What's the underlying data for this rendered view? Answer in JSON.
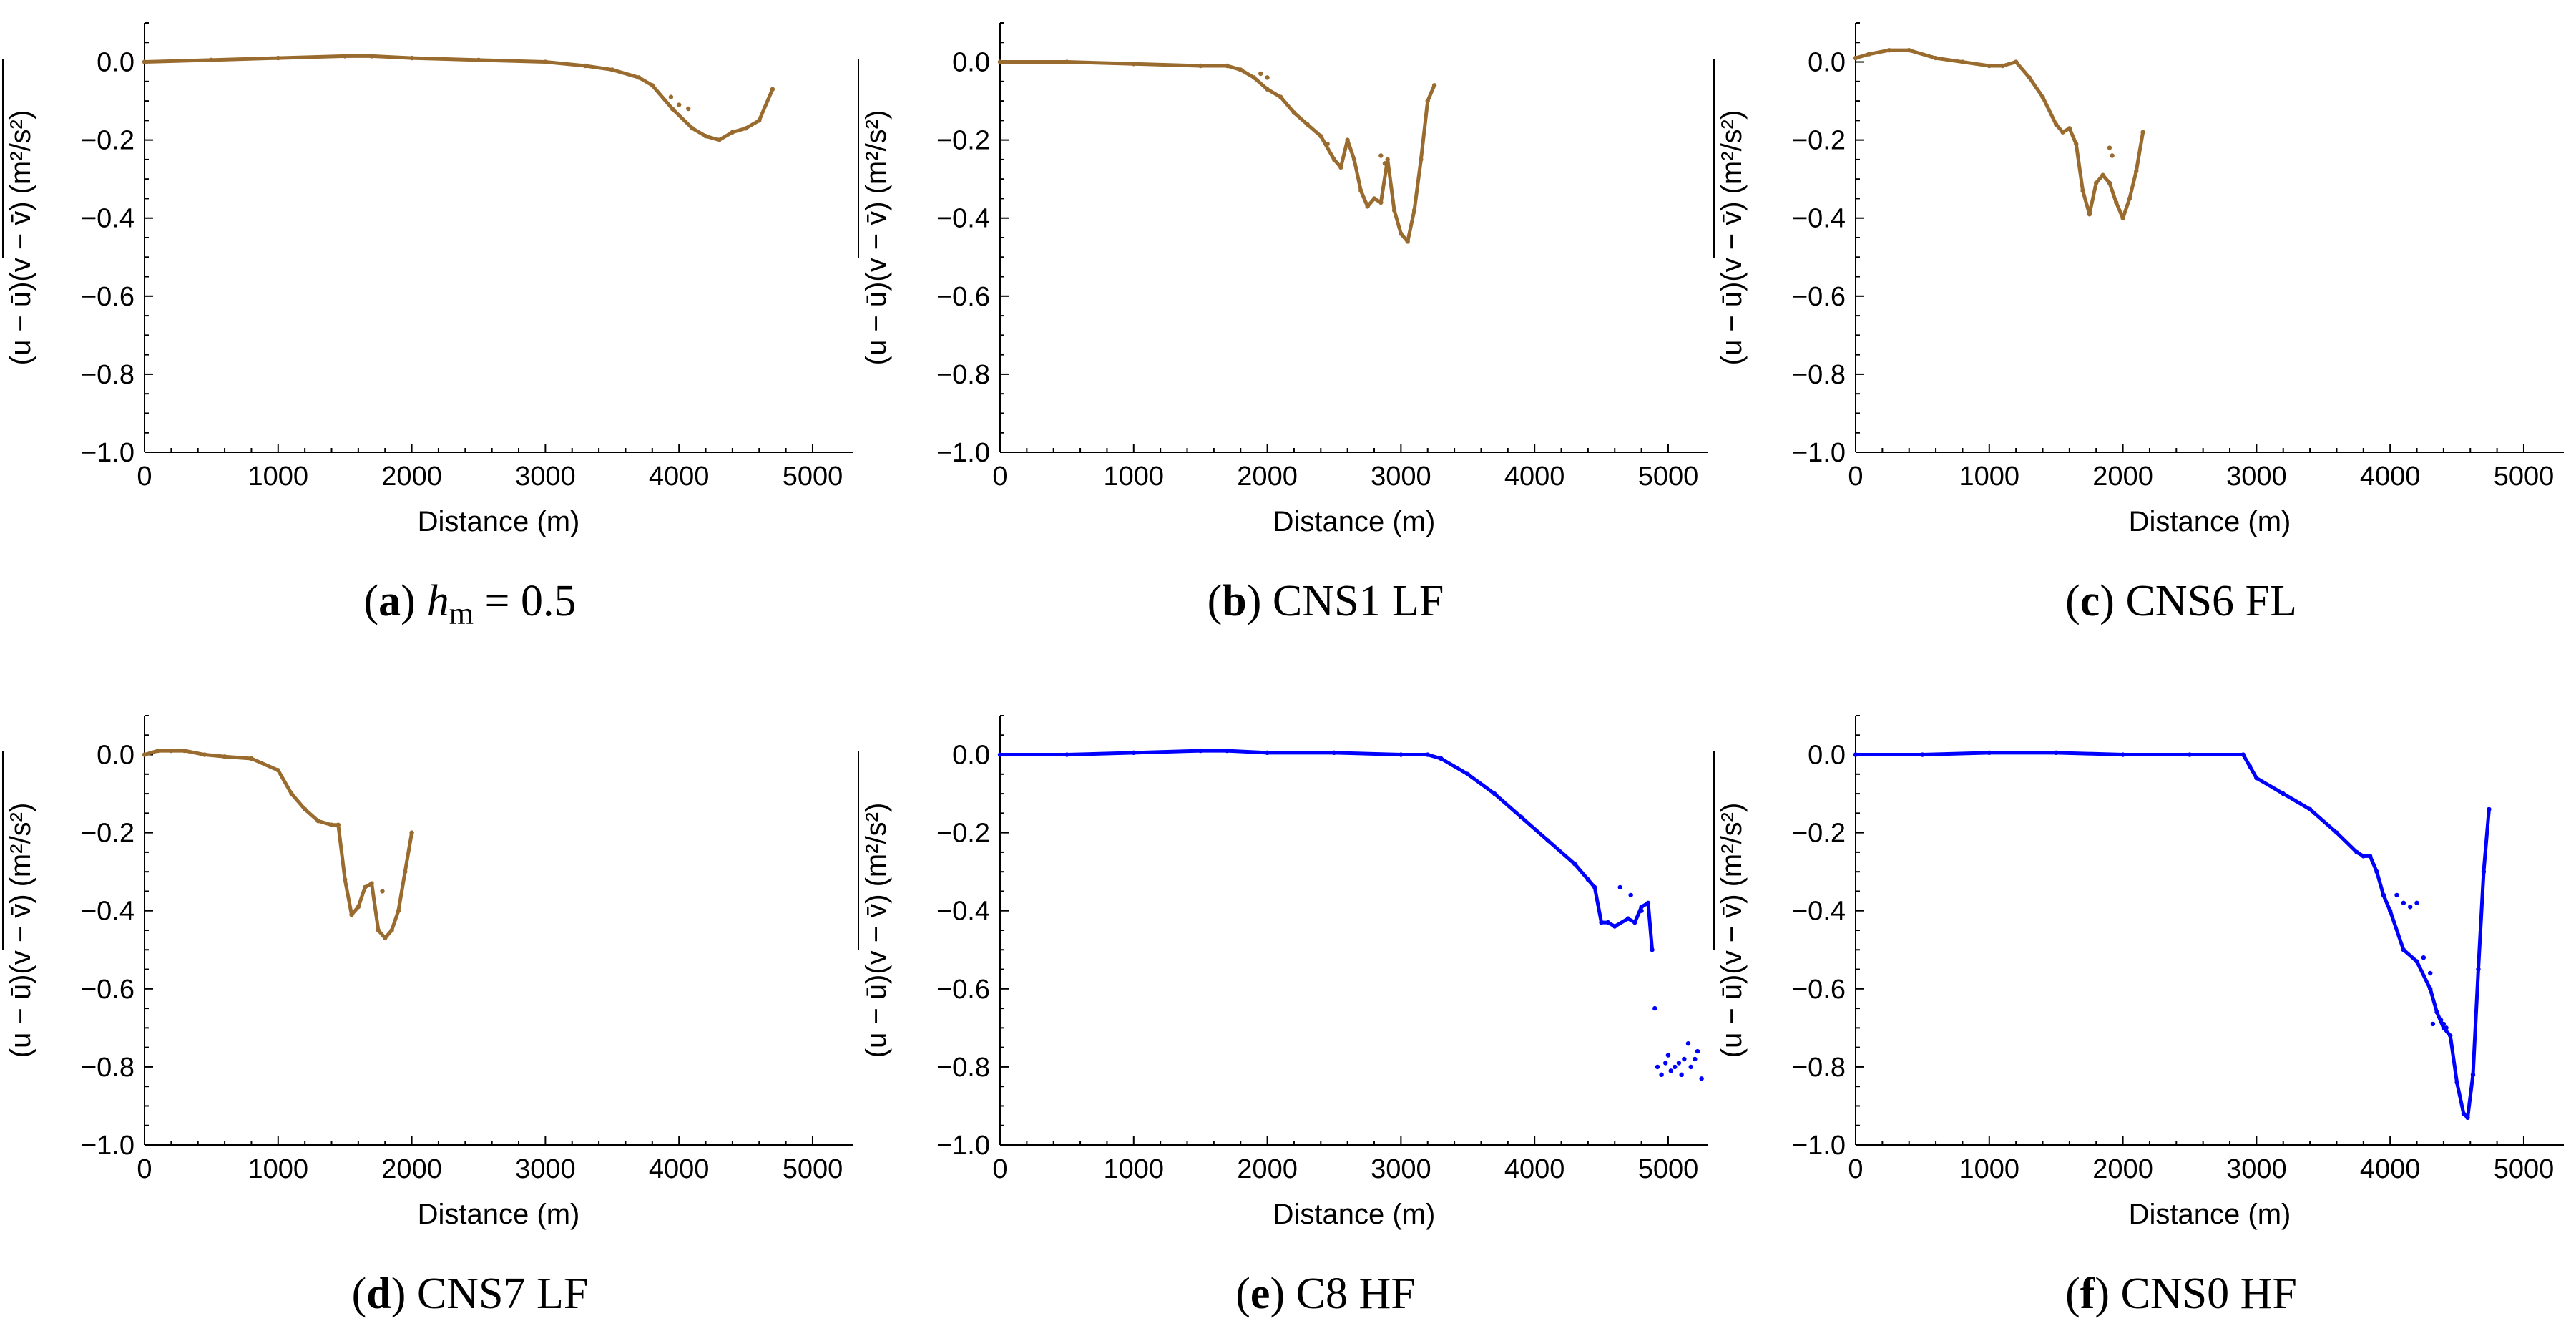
{
  "chart_data": [
    {
      "type": "scatter",
      "panel": "a",
      "caption": {
        "letter": "a",
        "math_var": "h",
        "math_sub": "m",
        "text": " = 0.5"
      },
      "xlabel": "Distance (m)",
      "ylabel": {
        "main": "(u − ū)(v − v̄)",
        "unit": "(m²/s²)"
      },
      "xlim": [
        0,
        5300
      ],
      "ylim": [
        -1.0,
        0.1
      ],
      "xticks": [
        0,
        1000,
        2000,
        3000,
        4000,
        5000
      ],
      "yticks": [
        0.0,
        -0.2,
        -0.4,
        -0.6,
        -0.8,
        -1.0
      ],
      "ytick_labels": [
        "0.0",
        "−0.2",
        "−0.4",
        "−0.6",
        "−0.8",
        "−1.0"
      ],
      "series_color": "#996b2e",
      "x": [
        0,
        500,
        1000,
        1500,
        1700,
        2000,
        2500,
        3000,
        3300,
        3500,
        3700,
        3800,
        3950,
        4100,
        4200,
        4300,
        4400,
        4500,
        4600,
        4700
      ],
      "y": [
        0.0,
        0.005,
        0.01,
        0.015,
        0.015,
        0.01,
        0.005,
        0.0,
        -0.01,
        -0.02,
        -0.04,
        -0.06,
        -0.12,
        -0.17,
        -0.19,
        -0.2,
        -0.18,
        -0.17,
        -0.15,
        -0.07
      ],
      "scatter_points": {
        "x": [
          4000,
          4070,
          3940
        ],
        "y": [
          -0.11,
          -0.12,
          -0.09
        ]
      }
    },
    {
      "type": "scatter",
      "panel": "b",
      "caption": {
        "letter": "b",
        "text": " CNS1 LF"
      },
      "xlabel": "Distance (m)",
      "ylabel": {
        "main": "(u − ū)(v − v̄)",
        "unit": "(m²/s²)"
      },
      "xlim": [
        0,
        5300
      ],
      "ylim": [
        -1.0,
        0.1
      ],
      "xticks": [
        0,
        1000,
        2000,
        3000,
        4000,
        5000
      ],
      "yticks": [
        0.0,
        -0.2,
        -0.4,
        -0.6,
        -0.8,
        -1.0
      ],
      "ytick_labels": [
        "0.0",
        "−0.2",
        "−0.4",
        "−0.6",
        "−0.8",
        "−1.0"
      ],
      "series_color": "#996b2e",
      "x": [
        0,
        500,
        1000,
        1500,
        1700,
        1800,
        1900,
        2000,
        2100,
        2200,
        2300,
        2400,
        2500,
        2550,
        2600,
        2650,
        2700,
        2750,
        2800,
        2850,
        2900,
        2950,
        3000,
        3050,
        3100,
        3150,
        3200,
        3250
      ],
      "y": [
        0.0,
        0.0,
        -0.005,
        -0.01,
        -0.01,
        -0.02,
        -0.04,
        -0.07,
        -0.09,
        -0.13,
        -0.16,
        -0.19,
        -0.25,
        -0.27,
        -0.2,
        -0.25,
        -0.33,
        -0.37,
        -0.35,
        -0.36,
        -0.25,
        -0.38,
        -0.44,
        -0.46,
        -0.38,
        -0.25,
        -0.1,
        -0.06
      ],
      "scatter_points": {
        "x": [
          1950,
          2000,
          2450,
          2850,
          2880
        ],
        "y": [
          -0.03,
          -0.04,
          -0.21,
          -0.24,
          -0.26
        ]
      }
    },
    {
      "type": "scatter",
      "panel": "c",
      "caption": {
        "letter": "c",
        "text": " CNS6 FL"
      },
      "xlabel": "Distance (m)",
      "ylabel": {
        "main": "(u − ū)(v − v̄)",
        "unit": "(m²/s²)"
      },
      "xlim": [
        0,
        5300
      ],
      "ylim": [
        -1.0,
        0.1
      ],
      "xticks": [
        0,
        1000,
        2000,
        3000,
        4000,
        5000
      ],
      "yticks": [
        0.0,
        -0.2,
        -0.4,
        -0.6,
        -0.8,
        -1.0
      ],
      "ytick_labels": [
        "0.0",
        "−0.2",
        "−0.4",
        "−0.6",
        "−0.8",
        "−1.0"
      ],
      "series_color": "#996b2e",
      "x": [
        0,
        100,
        250,
        400,
        600,
        800,
        1000,
        1100,
        1200,
        1300,
        1400,
        1500,
        1550,
        1600,
        1650,
        1700,
        1750,
        1800,
        1850,
        1900,
        1950,
        2000,
        2050,
        2100,
        2150
      ],
      "y": [
        0.01,
        0.02,
        0.03,
        0.03,
        0.01,
        0.0,
        -0.01,
        -0.01,
        -0.0,
        -0.04,
        -0.09,
        -0.16,
        -0.18,
        -0.17,
        -0.21,
        -0.33,
        -0.39,
        -0.31,
        -0.29,
        -0.31,
        -0.36,
        -0.4,
        -0.35,
        -0.28,
        -0.18
      ],
      "scatter_points": {
        "x": [
          1900,
          1920
        ],
        "y": [
          -0.22,
          -0.24
        ]
      }
    },
    {
      "type": "scatter",
      "panel": "d",
      "caption": {
        "letter": "d",
        "text": " CNS7 LF"
      },
      "xlabel": "Distance (m)",
      "ylabel": {
        "main": "(u − ū)(v − v̄)",
        "unit": "(m²/s²)"
      },
      "xlim": [
        0,
        5300
      ],
      "ylim": [
        -1.0,
        0.1
      ],
      "xticks": [
        0,
        1000,
        2000,
        3000,
        4000,
        5000
      ],
      "yticks": [
        0.0,
        -0.2,
        -0.4,
        -0.6,
        -0.8,
        -1.0
      ],
      "ytick_labels": [
        "0.0",
        "−0.2",
        "−0.4",
        "−0.6",
        "−0.8",
        "−1.0"
      ],
      "series_color": "#996b2e",
      "x": [
        0,
        100,
        200,
        300,
        450,
        600,
        800,
        1000,
        1100,
        1200,
        1300,
        1400,
        1450,
        1500,
        1550,
        1600,
        1650,
        1700,
        1750,
        1800,
        1850,
        1900,
        1950,
        2000
      ],
      "y": [
        0.0,
        0.01,
        0.01,
        0.01,
        0.0,
        -0.005,
        -0.01,
        -0.04,
        -0.1,
        -0.14,
        -0.17,
        -0.18,
        -0.18,
        -0.32,
        -0.41,
        -0.39,
        -0.34,
        -0.33,
        -0.45,
        -0.47,
        -0.45,
        -0.4,
        -0.3,
        -0.2
      ],
      "scatter_points": {
        "x": [
          1780
        ],
        "y": [
          -0.35
        ]
      }
    },
    {
      "type": "scatter",
      "panel": "e",
      "caption": {
        "letter": "e",
        "text": " C8 HF"
      },
      "xlabel": "Distance (m)",
      "ylabel": {
        "main": "(u − ū)(v − v̄)",
        "unit": "(m²/s²)"
      },
      "xlim": [
        0,
        5300
      ],
      "ylim": [
        -1.0,
        0.1
      ],
      "xticks": [
        0,
        1000,
        2000,
        3000,
        4000,
        5000
      ],
      "yticks": [
        0.0,
        -0.2,
        -0.4,
        -0.6,
        -0.8,
        -1.0
      ],
      "ytick_labels": [
        "0.0",
        "−0.2",
        "−0.4",
        "−0.6",
        "−0.8",
        "−1.0"
      ],
      "series_color": "#0000ff",
      "x": [
        0,
        500,
        1000,
        1500,
        1700,
        2000,
        2500,
        3000,
        3200,
        3300,
        3500,
        3700,
        3900,
        4100,
        4300,
        4400,
        4450,
        4500,
        4550,
        4600,
        4700,
        4750,
        4800,
        4850,
        4880
      ],
      "y": [
        0.0,
        0.0,
        0.005,
        0.01,
        0.01,
        0.005,
        0.005,
        0.0,
        0.0,
        -0.01,
        -0.05,
        -0.1,
        -0.16,
        -0.22,
        -0.28,
        -0.32,
        -0.34,
        -0.43,
        -0.43,
        -0.44,
        -0.42,
        -0.43,
        -0.39,
        -0.38,
        -0.5
      ],
      "scatter_points": {
        "x": [
          4640,
          4720,
          4800,
          4900,
          4920,
          4950,
          4980,
          5000,
          5020,
          5050,
          5080,
          5100,
          5120,
          5150,
          5170,
          5200,
          5220,
          5250
        ],
        "y": [
          -0.34,
          -0.36,
          -0.4,
          -0.65,
          -0.8,
          -0.82,
          -0.79,
          -0.77,
          -0.81,
          -0.8,
          -0.79,
          -0.82,
          -0.78,
          -0.74,
          -0.8,
          -0.78,
          -0.76,
          -0.83
        ]
      }
    },
    {
      "type": "scatter",
      "panel": "f",
      "caption": {
        "letter": "f",
        "text": " CNS0 HF"
      },
      "xlabel": "Distance (m)",
      "ylabel": {
        "main": "(u − ū)(v − v̄)",
        "unit": "(m²/s²)"
      },
      "xlim": [
        0,
        5300
      ],
      "ylim": [
        -1.0,
        0.1
      ],
      "xticks": [
        0,
        1000,
        2000,
        3000,
        4000,
        5000
      ],
      "yticks": [
        0.0,
        -0.2,
        -0.4,
        -0.6,
        -0.8,
        -1.0
      ],
      "ytick_labels": [
        "0.0",
        "−0.2",
        "−0.4",
        "−0.6",
        "−0.8",
        "−1.0"
      ],
      "series_color": "#0000ff",
      "x": [
        0,
        500,
        1000,
        1500,
        2000,
        2500,
        2900,
        2950,
        3000,
        3200,
        3400,
        3600,
        3750,
        3800,
        3850,
        3900,
        3950,
        4000,
        4100,
        4200,
        4300,
        4350,
        4400,
        4450,
        4500,
        4550,
        4580,
        4620,
        4660,
        4700,
        4740
      ],
      "y": [
        0.0,
        0.0,
        0.005,
        0.005,
        0.0,
        0.0,
        0.0,
        -0.03,
        -0.06,
        -0.1,
        -0.14,
        -0.2,
        -0.25,
        -0.26,
        -0.26,
        -0.3,
        -0.36,
        -0.4,
        -0.5,
        -0.53,
        -0.6,
        -0.66,
        -0.7,
        -0.72,
        -0.84,
        -0.92,
        -0.93,
        -0.82,
        -0.55,
        -0.3,
        -0.14
      ],
      "scatter_points": {
        "x": [
          4050,
          4100,
          4150,
          4200,
          4250,
          4300,
          4320,
          4380,
          4400,
          4420
        ],
        "y": [
          -0.36,
          -0.38,
          -0.39,
          -0.38,
          -0.52,
          -0.56,
          -0.69,
          -0.68,
          -0.69,
          -0.7
        ]
      }
    }
  ]
}
